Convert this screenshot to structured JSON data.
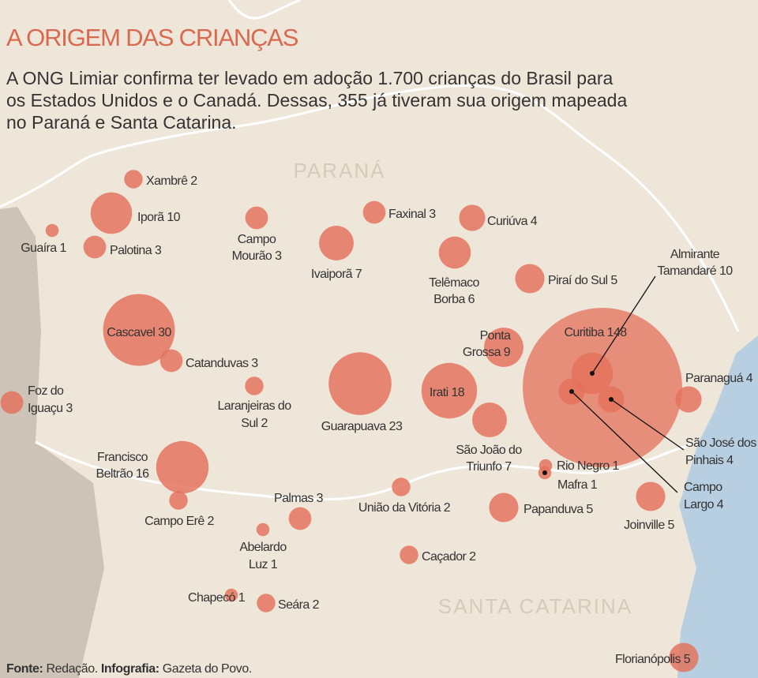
{
  "header": {
    "title": "A ORIGEM DAS CRIANÇAS",
    "intro": [
      "A ONG Limiar confirma ter levado em adoção 1.700 crianças do Brasil para",
      "os Estados Unidos e o Canadá. Dessas, 355 já tiveram sua origem mapeada",
      "no Paraná e Santa Catarina."
    ]
  },
  "regions": [
    "PARANÁ",
    "SANTA CATARINA"
  ],
  "cities": [
    {
      "name": [
        "Xambrê"
      ],
      "count": 2
    },
    {
      "name": [
        "Iporã"
      ],
      "count": 10
    },
    {
      "name": [
        "Guaíra"
      ],
      "count": 1
    },
    {
      "name": [
        "Palotina"
      ],
      "count": 3
    },
    {
      "name": [
        "Campo",
        "Mourão"
      ],
      "count": 3
    },
    {
      "name": [
        "Ivaiporã"
      ],
      "count": 7
    },
    {
      "name": [
        "Faxinal"
      ],
      "count": 3
    },
    {
      "name": [
        "Curiúva"
      ],
      "count": 4
    },
    {
      "name": [
        "Telêmaco",
        "Borba"
      ],
      "count": 6
    },
    {
      "name": [
        "Piraí do Sul"
      ],
      "count": 5
    },
    {
      "name": [
        "Almirante",
        "Tamandaré"
      ],
      "count": 10
    },
    {
      "name": [
        "Cascavel"
      ],
      "count": 30
    },
    {
      "name": [
        "Catanduvas"
      ],
      "count": 3
    },
    {
      "name": [
        "Foz do",
        "Iguaçu"
      ],
      "count": 3
    },
    {
      "name": [
        "Laranjeiras do",
        "Sul"
      ],
      "count": 2
    },
    {
      "name": [
        "Guarapuava"
      ],
      "count": 23
    },
    {
      "name": [
        "Ponta",
        "Grossa"
      ],
      "count": 9
    },
    {
      "name": [
        "Curitiba"
      ],
      "count": 148
    },
    {
      "name": [
        "Irati"
      ],
      "count": 18
    },
    {
      "name": [
        "São João do",
        "Triunfo"
      ],
      "count": 7
    },
    {
      "name": [
        "Paranaguá"
      ],
      "count": 4
    },
    {
      "name": [
        "São José dos",
        "Pinhais"
      ],
      "count": 4
    },
    {
      "name": [
        "Campo",
        "Largo"
      ],
      "count": 4
    },
    {
      "name": [
        "Rio Negro"
      ],
      "count": 1
    },
    {
      "name": [
        "Mafra"
      ],
      "count": 1
    },
    {
      "name": [
        "Francisco",
        "Beltrão"
      ],
      "count": 16
    },
    {
      "name": [
        "Campo Erê"
      ],
      "count": 2
    },
    {
      "name": [
        "Palmas"
      ],
      "count": 3
    },
    {
      "name": [
        "União da Vitória"
      ],
      "count": 2
    },
    {
      "name": [
        "Papanduva"
      ],
      "count": 5
    },
    {
      "name": [
        "Joinville"
      ],
      "count": 5
    },
    {
      "name": [
        "Abelardo",
        "Luz"
      ],
      "count": 1
    },
    {
      "name": [
        "Caçador"
      ],
      "count": 2
    },
    {
      "name": [
        "Chapecó"
      ],
      "count": 1
    },
    {
      "name": [
        "Seára"
      ],
      "count": 2
    },
    {
      "name": [
        "Florianópolis"
      ],
      "count": 5
    }
  ],
  "footer": {
    "source_label": "Fonte:",
    "source": "Redação.",
    "credit_label": "Infografia:",
    "credit": "Gazeta do Povo."
  }
}
